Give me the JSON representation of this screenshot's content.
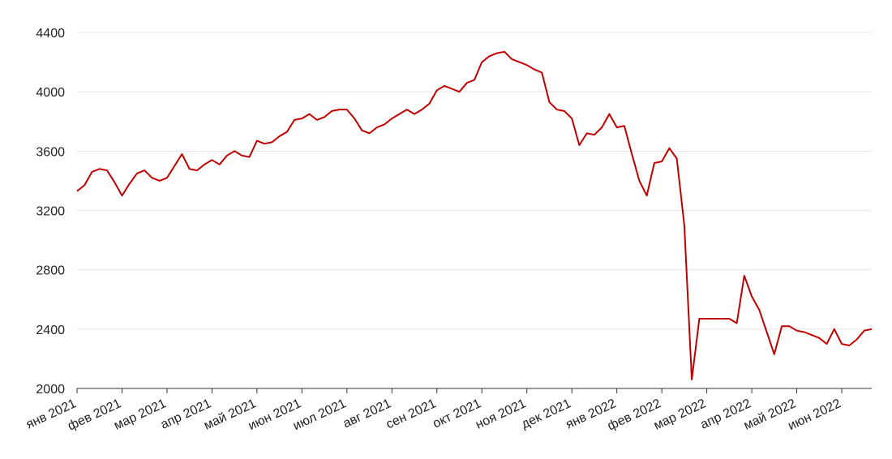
{
  "chart_data": {
    "type": "line",
    "categories": [
      "янв 2021",
      null,
      null,
      null,
      null,
      null,
      "фев 2021",
      null,
      null,
      null,
      null,
      null,
      "мар 2021",
      null,
      null,
      null,
      null,
      null,
      "апр 2021",
      null,
      null,
      null,
      null,
      null,
      "май 2021",
      null,
      null,
      null,
      null,
      null,
      "июн 2021",
      null,
      null,
      null,
      null,
      null,
      "июл 2021",
      null,
      null,
      null,
      null,
      null,
      "авг 2021",
      null,
      null,
      null,
      null,
      null,
      "сен 2021",
      null,
      null,
      null,
      null,
      null,
      "окт 2021",
      null,
      null,
      null,
      null,
      null,
      "ноя 2021",
      null,
      null,
      null,
      null,
      null,
      "дек 2021",
      null,
      null,
      null,
      null,
      null,
      "янв 2022",
      null,
      null,
      null,
      null,
      null,
      "фев 2022",
      null,
      null,
      null,
      null,
      null,
      "мар 2022",
      null,
      null,
      null,
      null,
      null,
      "апр 2022",
      null,
      null,
      null,
      null,
      null,
      "май 2022",
      null,
      null,
      null,
      null,
      null,
      "июн 2022",
      null,
      null,
      null,
      null
    ],
    "series": [
      {
        "color": "#c00000",
        "values": [
          3330,
          3370,
          3460,
          3480,
          3470,
          3390,
          3300,
          3380,
          3450,
          3470,
          3420,
          3400,
          3420,
          3500,
          3580,
          3480,
          3470,
          3510,
          3540,
          3510,
          3570,
          3600,
          3570,
          3560,
          3670,
          3650,
          3660,
          3700,
          3730,
          3810,
          3820,
          3850,
          3810,
          3830,
          3870,
          3880,
          3880,
          3820,
          3740,
          3720,
          3760,
          3780,
          3820,
          3850,
          3880,
          3850,
          3880,
          3920,
          4010,
          4040,
          4020,
          4000,
          4060,
          4080,
          4200,
          4240,
          4260,
          4270,
          4220,
          4200,
          4180,
          4150,
          4130,
          3930,
          3880,
          3870,
          3820,
          3640,
          3720,
          3710,
          3760,
          3850,
          3760,
          3770,
          3580,
          3400,
          3300,
          3520,
          3530,
          3620,
          3550,
          3100,
          2060,
          2470,
          2470,
          2470,
          2470,
          2470,
          2440,
          2760,
          2620,
          2530,
          2380,
          2230,
          2420,
          2420,
          2390,
          2380,
          2360,
          2340,
          2300,
          2400,
          2300,
          2290,
          2330,
          2390,
          2400
        ]
      }
    ],
    "ylim": [
      2000,
      4400
    ],
    "yticks": [
      2000,
      2400,
      2800,
      3200,
      3600,
      4000,
      4400
    ],
    "grid": true
  }
}
